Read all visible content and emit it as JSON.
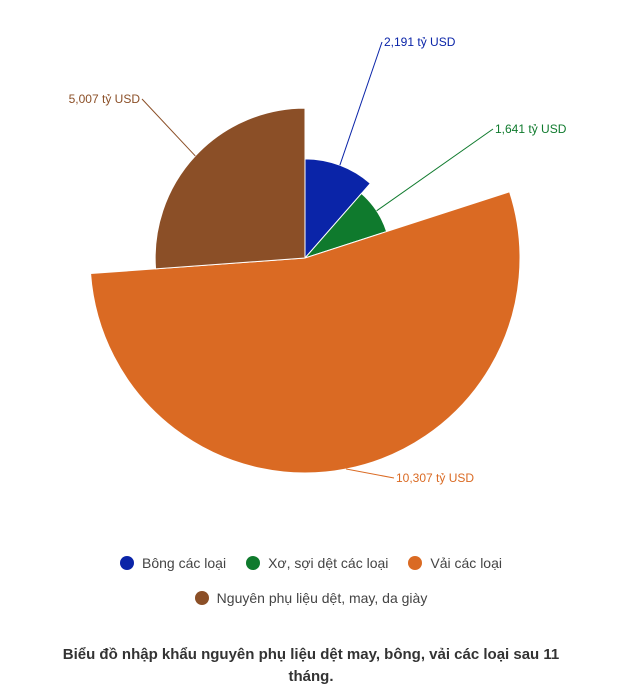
{
  "chart_data": {
    "type": "pie",
    "variant": "variable-radius",
    "title": "Biểu đồ nhập khẩu nguyên phụ liệu dệt may, bông, vải các loại sau 11 tháng.",
    "legend_position": "bottom",
    "slices": [
      {
        "name": "Bông các loại",
        "value": 2.191,
        "label": "2,191 tỷ USD",
        "color": "#0a24a8"
      },
      {
        "name": "Xơ, sợi dệt các loại",
        "value": 1.641,
        "label": "1,641 tỷ USD",
        "color": "#0f7a2d"
      },
      {
        "name": "Vải các loại",
        "value": 10.307,
        "label": "10,307 tỷ USD",
        "color": "#da6a23"
      },
      {
        "name": "Nguyên phụ liệu dệt, may, da giày",
        "value": 5.007,
        "label": "5,007 tỷ USD",
        "color": "#8b4f27"
      }
    ]
  }
}
